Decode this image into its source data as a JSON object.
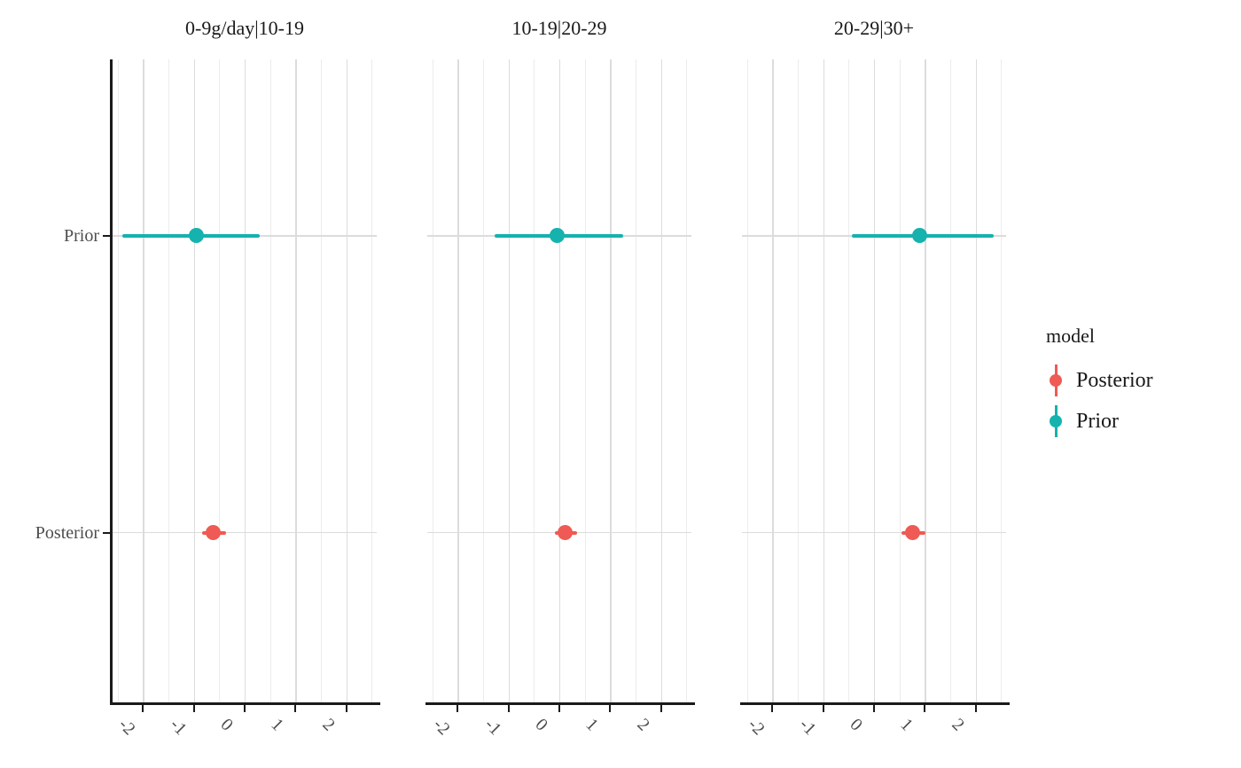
{
  "chart_data": {
    "type": "pointrange",
    "orientation": "horizontal",
    "title": "",
    "xlabel": "",
    "ylabel": "",
    "xlim": [
      -2.6,
      2.6
    ],
    "x_ticks": [
      -2,
      -1,
      0,
      1,
      2
    ],
    "x_minor_breaks": [
      -2.5,
      -1.5,
      -0.5,
      0.5,
      1.5,
      2.5
    ],
    "y_categories": [
      "Prior",
      "Posterior"
    ],
    "grid": "on",
    "legend_position": "right",
    "facets": [
      {
        "title": "0-9g/day|10-19",
        "data": [
          {
            "model": "Prior",
            "estimate": -0.95,
            "lower": -2.4,
            "upper": 0.3
          },
          {
            "model": "Posterior",
            "estimate": -0.62,
            "lower": -0.83,
            "upper": -0.37
          }
        ]
      },
      {
        "title": "10-19|20-29",
        "data": [
          {
            "model": "Prior",
            "estimate": -0.05,
            "lower": -1.27,
            "upper": 1.25
          },
          {
            "model": "Posterior",
            "estimate": 0.12,
            "lower": -0.09,
            "upper": 0.35
          }
        ]
      },
      {
        "title": "20-29|30+",
        "data": [
          {
            "model": "Prior",
            "estimate": 0.9,
            "lower": -0.44,
            "upper": 2.36
          },
          {
            "model": "Posterior",
            "estimate": 0.76,
            "lower": 0.54,
            "upper": 1.02
          }
        ]
      }
    ],
    "legend": {
      "title": "model",
      "items": [
        {
          "label": "Posterior",
          "color": "#ef5a54"
        },
        {
          "label": "Prior",
          "color": "#16b2ae"
        }
      ]
    },
    "colors": {
      "Posterior": "#ef5a54",
      "Prior": "#16b2ae",
      "grid_major": "#dcdcdc",
      "grid_minor": "#ececec",
      "axis": "#1a1a1a",
      "tick_label": "#4d4d4d"
    }
  }
}
